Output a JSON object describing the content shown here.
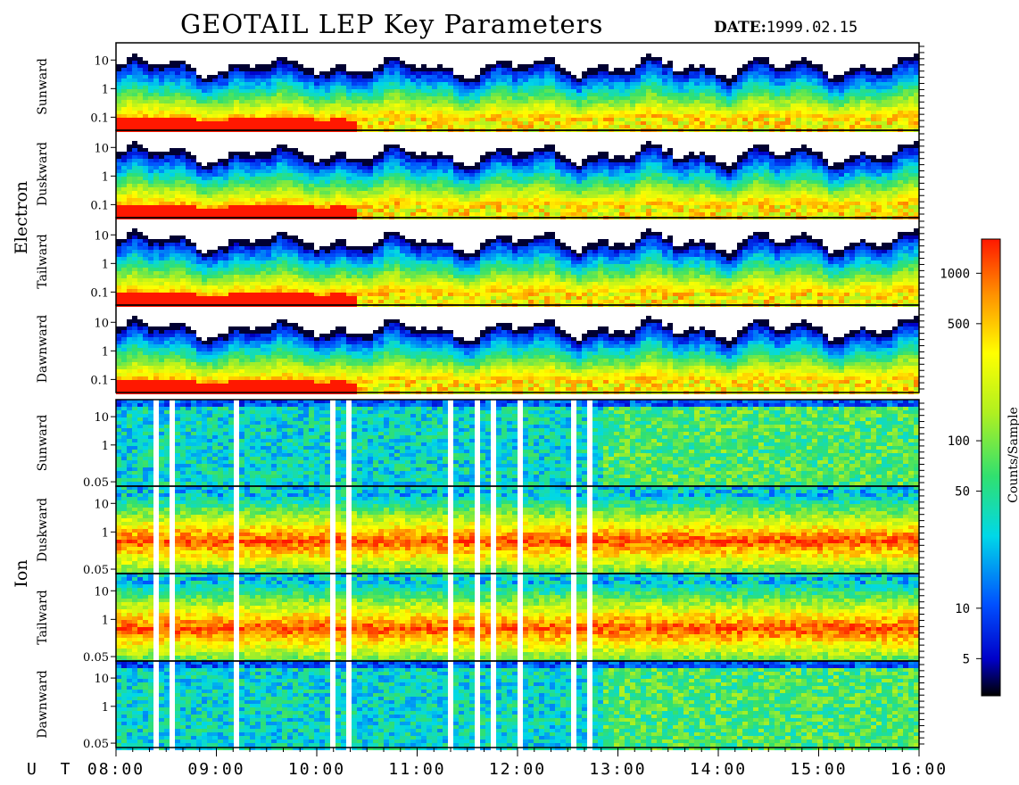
{
  "header": {
    "title": "GEOTAIL LEP Key Parameters",
    "date_label": "DATE:",
    "date_value": "1999.02.15"
  },
  "groups": [
    {
      "name": "Electron",
      "panels": [
        "Sunward",
        "Duskward",
        "Tailward",
        "Dawnward"
      ]
    },
    {
      "name": "Ion",
      "panels": [
        "Sunward",
        "Duskward",
        "Tailward",
        "Dawnward"
      ]
    }
  ],
  "chart_data": {
    "type": "heatmap",
    "title": "GEOTAIL LEP Key Parameters",
    "x_axis": {
      "label": "U T",
      "ticks": [
        "08:00",
        "09:00",
        "10:00",
        "11:00",
        "12:00",
        "13:00",
        "14:00",
        "15:00",
        "16:00"
      ],
      "range": [
        "08:00",
        "16:00"
      ]
    },
    "panels": [
      {
        "species": "Electron",
        "direction": "Sunward",
        "y_ticks": [
          "10",
          "1",
          "0.1"
        ],
        "y_scale": "log"
      },
      {
        "species": "Electron",
        "direction": "Duskward",
        "y_ticks": [
          "10",
          "1",
          "0.1"
        ],
        "y_scale": "log"
      },
      {
        "species": "Electron",
        "direction": "Tailward",
        "y_ticks": [
          "10",
          "1",
          "0.1"
        ],
        "y_scale": "log"
      },
      {
        "species": "Electron",
        "direction": "Dawnward",
        "y_ticks": [
          "10",
          "1",
          "0.1"
        ],
        "y_scale": "log"
      },
      {
        "species": "Ion",
        "direction": "Sunward",
        "y_ticks": [
          "10",
          "1",
          "0.05"
        ],
        "y_scale": "log"
      },
      {
        "species": "Ion",
        "direction": "Duskward",
        "y_ticks": [
          "10",
          "1",
          "0.05"
        ],
        "y_scale": "log"
      },
      {
        "species": "Ion",
        "direction": "Tailward",
        "y_ticks": [
          "10",
          "1",
          "0.05"
        ],
        "y_scale": "log"
      },
      {
        "species": "Ion",
        "direction": "Dawnward",
        "y_ticks": [
          "10",
          "1",
          "0.05"
        ],
        "y_scale": "log"
      }
    ],
    "colorbar": {
      "label": "Counts/Sample",
      "scale": "log",
      "range": [
        3,
        1600
      ],
      "ticks": [
        "1000",
        "500",
        "100",
        "50",
        "10",
        "5"
      ],
      "tick_values": [
        1000,
        500,
        100,
        50,
        10,
        5
      ]
    },
    "colormap": "rainbow (black-blue-cyan-green-yellow-red)"
  }
}
